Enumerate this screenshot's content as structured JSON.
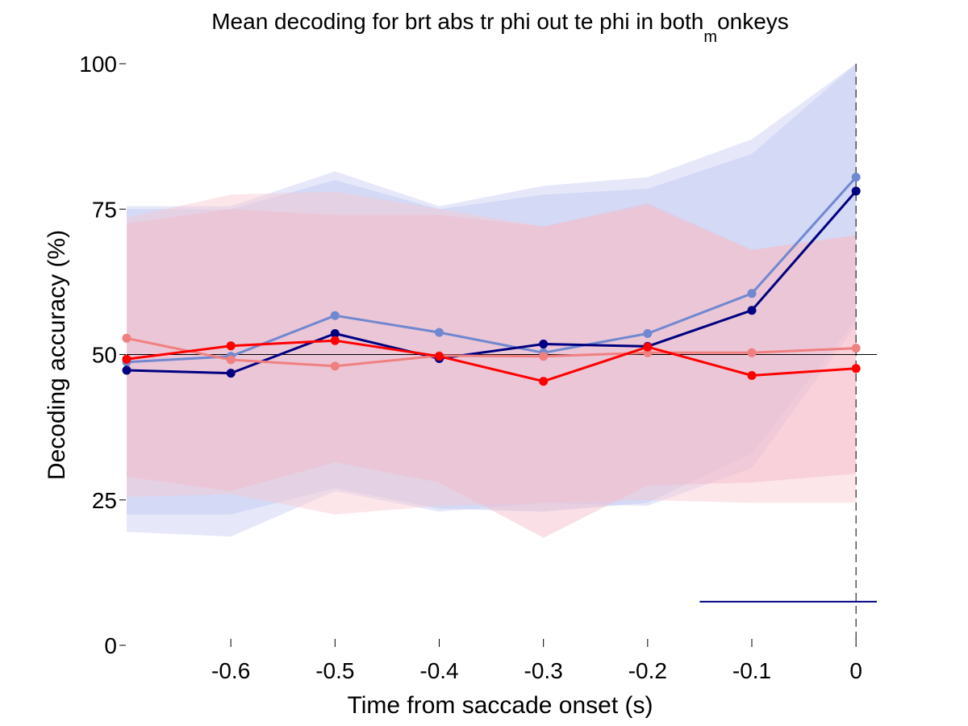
{
  "chart_data": {
    "type": "line",
    "title_prefix": "Mean decoding for brt abs tr phi out te phi in  both",
    "title_subscript": "m",
    "title_suffix": "onkeys",
    "xlabel": "Time from saccade onset (s)",
    "ylabel": "Decoding accuracy (%)",
    "xlim": [
      -0.7,
      0.02
    ],
    "ylim": [
      0,
      100
    ],
    "x_ticks": [
      -0.6,
      -0.5,
      -0.4,
      -0.3,
      -0.2,
      -0.1,
      0
    ],
    "x_tick_labels": [
      "-0.6",
      "-0.5",
      "-0.4",
      "-0.3",
      "-0.2",
      "-0.1",
      "0"
    ],
    "y_ticks": [
      0,
      25,
      50,
      75,
      100
    ],
    "y_tick_labels": [
      "0",
      "25",
      "50",
      "75",
      "100"
    ],
    "grid": false,
    "chance_level": 50,
    "vertical_marker_x": 0,
    "x": [
      -0.7,
      -0.6,
      -0.5,
      -0.4,
      -0.3,
      -0.2,
      -0.1,
      0
    ],
    "series": [
      {
        "color": "#7088d0",
        "band_color": "#b8c0ec",
        "values": [
          48.7,
          49.7,
          56.7,
          53.8,
          50.3,
          53.6,
          60.5,
          80.5
        ],
        "lower": [
          22.5,
          22.5,
          27.0,
          23.5,
          23.0,
          24.5,
          33.0,
          56.0
        ],
        "upper": [
          75.0,
          75.0,
          80.0,
          75.0,
          77.5,
          78.5,
          84.5,
          100.0
        ]
      },
      {
        "color": "#000080",
        "band_color": "#c8ccf4",
        "values": [
          47.3,
          46.8,
          53.6,
          49.3,
          51.8,
          51.4,
          57.6,
          78.1
        ],
        "lower": [
          19.5,
          18.7,
          26.5,
          23.0,
          24.5,
          24.0,
          30.5,
          55.0
        ],
        "upper": [
          75.5,
          75.5,
          81.5,
          75.5,
          79.0,
          80.5,
          87.0,
          101.0
        ]
      },
      {
        "color": "#f08080",
        "band_color": "#f8c8d0",
        "values": [
          52.8,
          49.1,
          48.0,
          49.8,
          49.7,
          50.3,
          50.3,
          51.1
        ],
        "lower": [
          25.5,
          26.0,
          22.5,
          24.0,
          24.5,
          25.0,
          24.5,
          24.5
        ],
        "upper": [
          73.5,
          77.5,
          78.0,
          75.0,
          72.0,
          75.5,
          68.0,
          70.5
        ]
      },
      {
        "color": "#ff0000",
        "band_color": "#f4b8c8",
        "values": [
          49.2,
          51.5,
          52.4,
          49.7,
          45.4,
          51.3,
          46.4,
          47.6
        ],
        "lower": [
          29.0,
          26.5,
          31.5,
          28.0,
          18.5,
          27.5,
          28.0,
          29.5
        ],
        "upper": [
          72.5,
          75.0,
          74.0,
          74.0,
          72.0,
          76.0,
          68.0,
          70.5
        ]
      }
    ],
    "significance_bars": [
      {
        "color": "#000080",
        "x_start": -0.15,
        "x_end": 0.02,
        "y": 7.5
      }
    ]
  }
}
